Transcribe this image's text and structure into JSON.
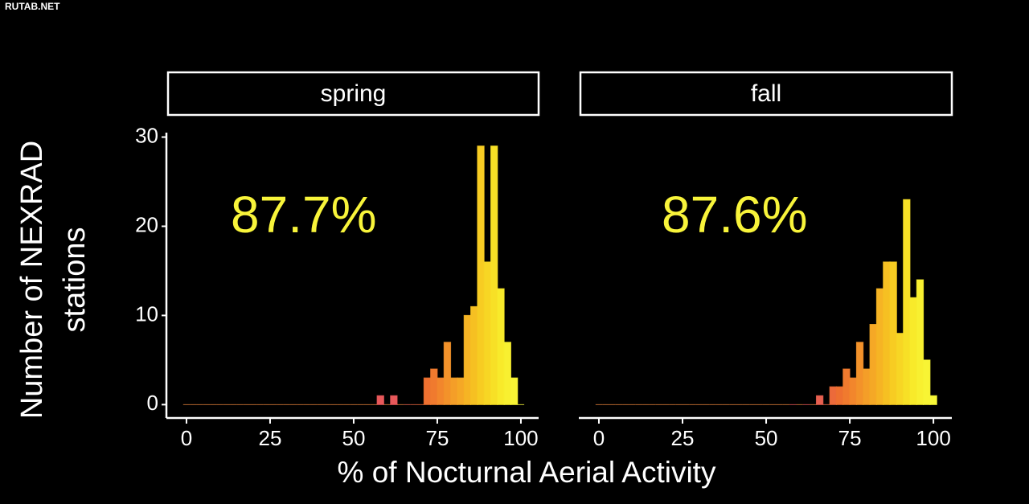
{
  "watermark": "RUTAB.NET",
  "figure": {
    "xlabel": "% of Nocturnal Aerial Activity",
    "ylabel": [
      "Number of NEXRAD",
      "stations"
    ]
  },
  "chart_data": [
    {
      "type": "histogram",
      "title": "spring",
      "annotation": "87.7%",
      "annotation_color": "#f8f43a",
      "bins": [
        -1,
        1,
        3,
        5,
        7,
        9,
        11,
        13,
        15,
        17,
        19,
        21,
        23,
        25,
        27,
        29,
        31,
        33,
        35,
        37,
        39,
        41,
        43,
        45,
        47,
        49,
        51,
        53,
        55,
        57,
        59,
        61,
        63,
        65,
        67,
        69,
        71,
        73,
        75,
        77,
        79,
        81,
        83,
        85,
        87,
        89,
        91,
        93,
        95,
        97,
        99,
        101
      ],
      "values": [
        0,
        0,
        0,
        0,
        0,
        0,
        0,
        0,
        0,
        0,
        0,
        0,
        0,
        0,
        0,
        0,
        0,
        0,
        0,
        0,
        0,
        0,
        0,
        0,
        0,
        0,
        0,
        0,
        0,
        1,
        0,
        1,
        0,
        0,
        0,
        0,
        3,
        4,
        3,
        7,
        3,
        3,
        10,
        11,
        29,
        16,
        29,
        13,
        7,
        3,
        0
      ],
      "colors": [
        "#e0803a",
        "#e0803a",
        "#e0803a",
        "#e0803a",
        "#e0803a",
        "#e0803a",
        "#e0803a",
        "#e0803a",
        "#e0803a",
        "#e0803a",
        "#e0803a",
        "#e0803a",
        "#e0803a",
        "#e0803a",
        "#e0803a",
        "#e0803a",
        "#e0803a",
        "#e0803a",
        "#e0803a",
        "#e0803a",
        "#e0803a",
        "#e0803a",
        "#e0803a",
        "#e0803a",
        "#e0803a",
        "#e0803a",
        "#e0803a",
        "#e0803a",
        "#e0803a",
        "#e8585a",
        "#e0803a",
        "#e8585a",
        "#e0803a",
        "#e86050",
        "#ea6644",
        "#ec6a3a",
        "#ee7030",
        "#f07a2e",
        "#f2862c",
        "#f3922a",
        "#f49e28",
        "#f5a826",
        "#f6b424",
        "#f6c022",
        "#f7cc22",
        "#f7d624",
        "#f7e026",
        "#f8ea2a",
        "#f8f030",
        "#f8f434",
        "#f8f838"
      ],
      "xlim": [
        -6,
        105.3
      ],
      "xticks": [
        0,
        25,
        50,
        75,
        100
      ],
      "ylim": [
        -1.5,
        30.5
      ],
      "yticks": [
        0,
        10,
        20,
        30
      ],
      "show_yaxis": true
    },
    {
      "type": "histogram",
      "title": "fall",
      "annotation": "87.6%",
      "annotation_color": "#f8f43a",
      "bins": [
        -1,
        1,
        3,
        5,
        7,
        9,
        11,
        13,
        15,
        17,
        19,
        21,
        23,
        25,
        27,
        29,
        31,
        33,
        35,
        37,
        39,
        41,
        43,
        45,
        47,
        49,
        51,
        53,
        55,
        57,
        59,
        61,
        63,
        65,
        67,
        69,
        71,
        73,
        75,
        77,
        79,
        81,
        83,
        85,
        87,
        89,
        91,
        93,
        95,
        97,
        99,
        101
      ],
      "values": [
        0,
        0,
        0,
        0,
        0,
        0,
        0,
        0,
        0,
        0,
        0,
        0,
        0,
        0,
        0,
        0,
        0,
        0,
        0,
        0,
        0,
        0,
        0,
        0,
        0,
        0,
        0,
        0,
        0,
        0,
        0,
        0,
        0,
        1,
        0,
        2,
        2,
        4,
        3,
        7,
        4,
        9,
        13,
        16,
        16,
        8,
        23,
        12,
        14,
        5,
        1
      ],
      "colors": [
        "#e0803a",
        "#e0803a",
        "#e0803a",
        "#e0803a",
        "#e0803a",
        "#e0803a",
        "#e0803a",
        "#e0803a",
        "#e0803a",
        "#e0803a",
        "#e0803a",
        "#e0803a",
        "#e0803a",
        "#e0803a",
        "#e0803a",
        "#e0803a",
        "#e0803a",
        "#e0803a",
        "#e0803a",
        "#e0803a",
        "#e0803a",
        "#e0803a",
        "#e0803a",
        "#e0803a",
        "#e0803a",
        "#e0803a",
        "#e0803a",
        "#e0803a",
        "#e0803a",
        "#e8585a",
        "#e0803a",
        "#e8585a",
        "#e0803a",
        "#e86050",
        "#ea6644",
        "#ec6a3a",
        "#ee7030",
        "#f07a2e",
        "#f2862c",
        "#f3922a",
        "#f49e28",
        "#f5a826",
        "#f6b424",
        "#f6c022",
        "#f7cc22",
        "#f7d624",
        "#f7e026",
        "#f8ea2a",
        "#f8f030",
        "#f8f434",
        "#f8f838"
      ],
      "xlim": [
        -6,
        105.5
      ],
      "xticks": [
        0,
        25,
        50,
        75,
        100
      ],
      "ylim": [
        -1.5,
        30.5
      ],
      "show_yaxis": false
    }
  ]
}
